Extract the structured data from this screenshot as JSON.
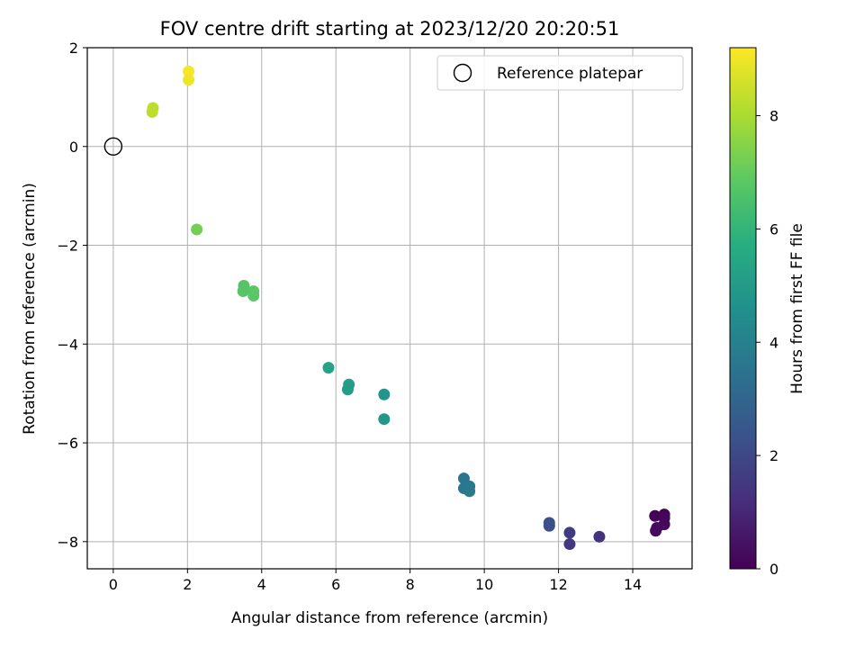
{
  "chart_data": {
    "type": "scatter",
    "title": "FOV centre drift starting at 2023/12/20 20:20:51",
    "xlabel": "Angular distance from reference (arcmin)",
    "ylabel": "Rotation from reference (arcmin)",
    "xlim": [
      -0.7,
      15.6
    ],
    "ylim": [
      -8.55,
      2.0
    ],
    "xticks": [
      0,
      2,
      4,
      6,
      8,
      10,
      12,
      14
    ],
    "yticks": [
      -8,
      -6,
      -4,
      -2,
      0,
      2
    ],
    "grid": true,
    "legend": {
      "placement": "top-right",
      "entries": [
        "Reference platepar"
      ]
    },
    "reference_point": {
      "name": "Reference platepar",
      "x": 0,
      "y": 0
    },
    "colorbar": {
      "label": "Hours from first FF file",
      "colormap": "viridis",
      "range": [
        0,
        9.2
      ],
      "ticks": [
        0,
        2,
        4,
        6,
        8
      ]
    },
    "points": [
      {
        "x": 14.6,
        "y": -7.48,
        "c": 0.05
      },
      {
        "x": 14.85,
        "y": -7.45,
        "c": 0.1
      },
      {
        "x": 14.85,
        "y": -7.52,
        "c": 0.15
      },
      {
        "x": 14.85,
        "y": -7.65,
        "c": 0.2
      },
      {
        "x": 14.65,
        "y": -7.72,
        "c": 0.25
      },
      {
        "x": 14.62,
        "y": -7.78,
        "c": 0.3
      },
      {
        "x": 13.1,
        "y": -7.9,
        "c": 1.3
      },
      {
        "x": 12.3,
        "y": -7.82,
        "c": 1.6
      },
      {
        "x": 12.3,
        "y": -8.05,
        "c": 1.5
      },
      {
        "x": 11.75,
        "y": -7.62,
        "c": 2.2
      },
      {
        "x": 11.75,
        "y": -7.68,
        "c": 2.25
      },
      {
        "x": 9.45,
        "y": -6.72,
        "c": 3.6
      },
      {
        "x": 9.45,
        "y": -6.92,
        "c": 3.65
      },
      {
        "x": 9.6,
        "y": -6.88,
        "c": 3.7
      },
      {
        "x": 9.6,
        "y": -6.98,
        "c": 3.75
      },
      {
        "x": 7.3,
        "y": -5.02,
        "c": 4.8
      },
      {
        "x": 7.3,
        "y": -5.52,
        "c": 4.85
      },
      {
        "x": 6.35,
        "y": -4.82,
        "c": 5.1
      },
      {
        "x": 6.32,
        "y": -4.92,
        "c": 5.05
      },
      {
        "x": 5.8,
        "y": -4.48,
        "c": 5.3
      },
      {
        "x": 3.52,
        "y": -2.82,
        "c": 6.7
      },
      {
        "x": 3.5,
        "y": -2.93,
        "c": 6.75
      },
      {
        "x": 3.78,
        "y": -2.93,
        "c": 6.8
      },
      {
        "x": 3.78,
        "y": -3.02,
        "c": 6.8
      },
      {
        "x": 2.25,
        "y": -1.68,
        "c": 7.2
      },
      {
        "x": 1.07,
        "y": 0.78,
        "c": 8.3
      },
      {
        "x": 1.05,
        "y": 0.7,
        "c": 8.3
      },
      {
        "x": 2.03,
        "y": 1.52,
        "c": 9.1
      },
      {
        "x": 2.03,
        "y": 1.35,
        "c": 9.0
      }
    ]
  }
}
